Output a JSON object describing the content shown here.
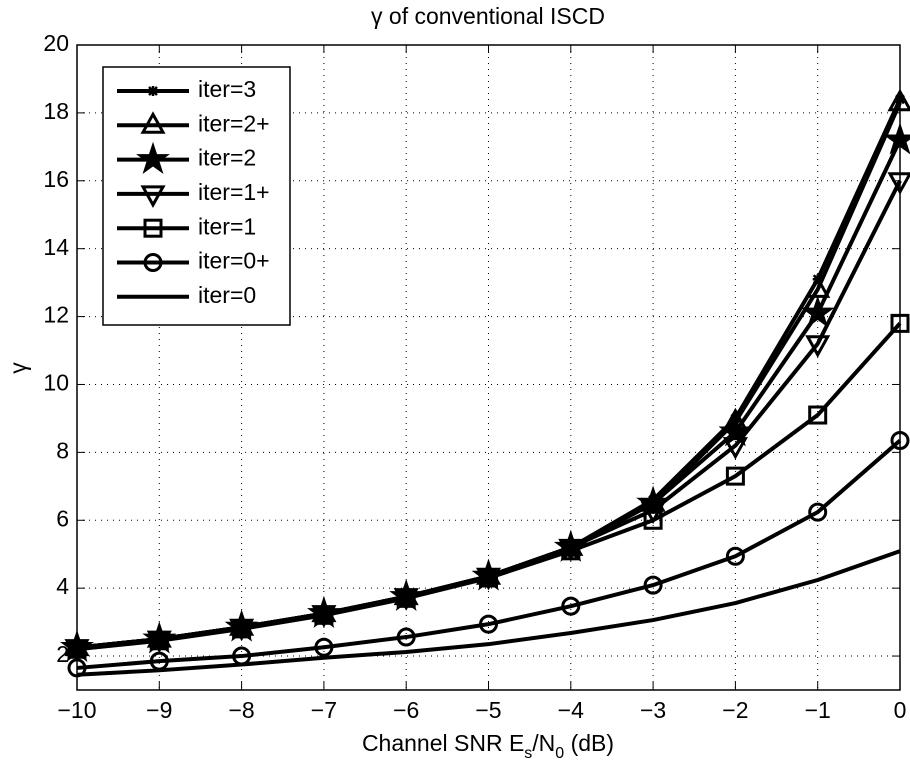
{
  "chart_data": {
    "type": "line",
    "title": "γ of conventional ISCD",
    "xlabel": [
      "Channel SNR E",
      "s",
      "/N",
      "0",
      " (dB)"
    ],
    "ylabel": "γ",
    "x": [
      -10,
      -9,
      -8,
      -7,
      -6,
      -5,
      -4,
      -3,
      -2,
      -1,
      0
    ],
    "xlim": [
      -10,
      0
    ],
    "xticks": [
      {
        "value": -10,
        "label": "−10"
      },
      {
        "value": -9,
        "label": "−9"
      },
      {
        "value": -8,
        "label": "−8"
      },
      {
        "value": -7,
        "label": "−7"
      },
      {
        "value": -6,
        "label": "−6"
      },
      {
        "value": -5,
        "label": "−5"
      },
      {
        "value": -4,
        "label": "−4"
      },
      {
        "value": -3,
        "label": "−3"
      },
      {
        "value": -2,
        "label": "−2"
      },
      {
        "value": -1,
        "label": "−1"
      },
      0
    ],
    "ylim": [
      1,
      20
    ],
    "yticks": [
      2,
      4,
      6,
      8,
      10,
      12,
      14,
      16,
      18,
      20
    ],
    "grid": true,
    "legend": "upper left",
    "series": [
      {
        "name": "iter=3",
        "color": "#000000",
        "marker": "asterisk",
        "values": [
          2.25,
          2.5,
          2.85,
          3.25,
          3.75,
          4.35,
          5.2,
          6.6,
          9.0,
          13.1,
          18.4
        ]
      },
      {
        "name": "iter=2+",
        "color": "#000000",
        "marker": "triangle-up",
        "values": [
          2.25,
          2.5,
          2.85,
          3.25,
          3.75,
          4.35,
          5.2,
          6.5,
          8.9,
          12.8,
          18.3
        ]
      },
      {
        "name": "iter=2",
        "color": "#000000",
        "marker": "star",
        "values": [
          2.25,
          2.5,
          2.85,
          3.25,
          3.75,
          4.35,
          5.2,
          6.5,
          8.6,
          12.1,
          17.2
        ]
      },
      {
        "name": "iter=1+",
        "color": "#000000",
        "marker": "triangle-down",
        "values": [
          2.25,
          2.5,
          2.85,
          3.25,
          3.75,
          4.35,
          5.2,
          6.3,
          8.2,
          11.2,
          16.0
        ]
      },
      {
        "name": "iter=1",
        "color": "#000000",
        "marker": "square",
        "values": [
          2.2,
          2.45,
          2.8,
          3.2,
          3.7,
          4.3,
          5.1,
          6.0,
          7.3,
          9.1,
          11.8
        ]
      },
      {
        "name": "iter=0+",
        "color": "#000000",
        "marker": "circle",
        "values": [
          1.65,
          1.85,
          2.0,
          2.26,
          2.56,
          2.94,
          3.47,
          4.09,
          4.94,
          6.24,
          8.35
        ]
      },
      {
        "name": "iter=0",
        "color": "#000000",
        "marker": "none",
        "values": [
          1.45,
          1.58,
          1.75,
          1.95,
          2.12,
          2.35,
          2.68,
          3.06,
          3.56,
          4.24,
          5.09
        ]
      }
    ]
  }
}
